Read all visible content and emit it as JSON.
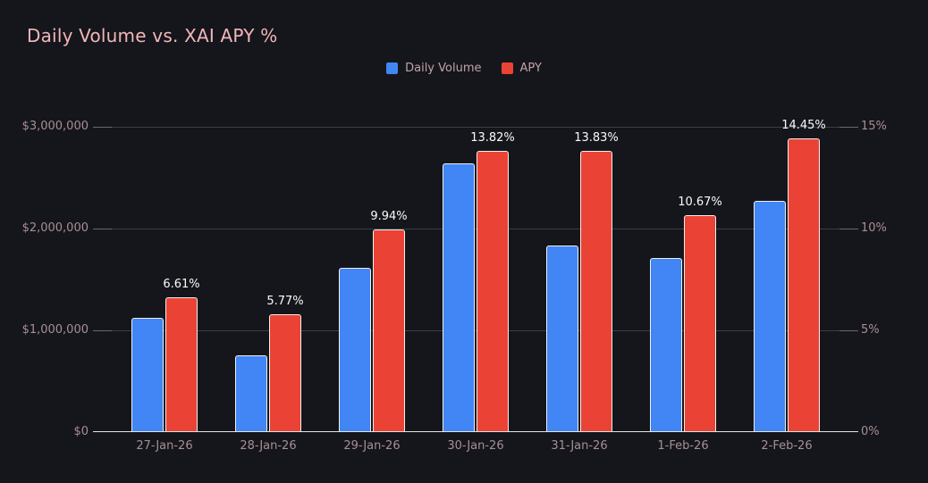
{
  "title": "Daily Volume vs. XAI APY %",
  "legend": [
    {
      "label": "Daily Volume",
      "color": "#4285f4"
    },
    {
      "label": "APY",
      "color": "#ea4335"
    }
  ],
  "colors": {
    "background": "#14161b",
    "title": "#f2b6ba",
    "axis_labels": "#a98e95",
    "gridline": "#3b3e46",
    "baseline": "#e5e2e4",
    "volume_bar": "#4285f4",
    "apy_bar": "#ea4335",
    "data_label": "#fafafa"
  },
  "chart_data": {
    "type": "bar",
    "title": "Daily Volume vs. XAI APY %",
    "categories": [
      "27-Jan-26",
      "28-Jan-26",
      "29-Jan-26",
      "30-Jan-26",
      "31-Jan-26",
      "1-Feb-26",
      "2-Feb-26"
    ],
    "series": [
      {
        "name": "Daily Volume",
        "axis": "left",
        "color": "#4285f4",
        "values": [
          1120000,
          755000,
          1615000,
          2645000,
          1835000,
          1710000,
          2270000
        ]
      },
      {
        "name": "APY",
        "axis": "right",
        "color": "#ea4335",
        "values": [
          6.61,
          5.77,
          9.94,
          13.82,
          13.83,
          10.67,
          14.45
        ],
        "data_labels": [
          "6.61%",
          "5.77%",
          "9.94%",
          "13.82%",
          "13.83%",
          "10.67%",
          "14.45%"
        ]
      }
    ],
    "left_axis": {
      "ticks": [
        "$3,000,000",
        "$2,000,000",
        "$1,000,000",
        "$0"
      ],
      "min": 0,
      "max": 3000000
    },
    "right_axis": {
      "ticks": [
        "15%",
        "10%",
        "5%",
        "0%"
      ],
      "min": 0,
      "max": 15
    },
    "grid": "horizontal-only",
    "legend_position": "top-center"
  }
}
